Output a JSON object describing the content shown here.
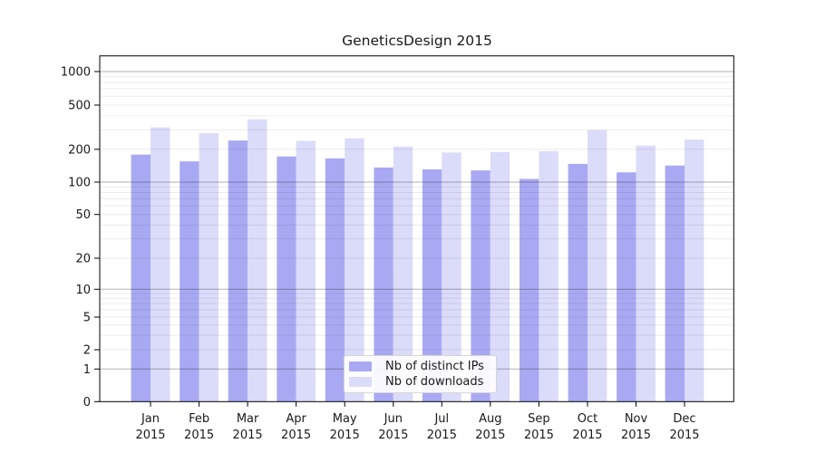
{
  "chart_data": {
    "type": "bar",
    "title": "GeneticsDesign 2015",
    "year": "2015",
    "categories": [
      "Jan",
      "Feb",
      "Mar",
      "Apr",
      "May",
      "Jun",
      "Jul",
      "Aug",
      "Sep",
      "Oct",
      "Nov",
      "Dec"
    ],
    "series": [
      {
        "name": "Nb of distinct IPs",
        "color": "#a9a9f3",
        "values": [
          179,
          155,
          240,
          172,
          165,
          136,
          131,
          128,
          107,
          147,
          123,
          142
        ]
      },
      {
        "name": "Nb of downloads",
        "color": "#dbdbfa",
        "values": [
          315,
          280,
          372,
          238,
          251,
          212,
          187,
          189,
          192,
          298,
          216,
          245
        ]
      }
    ],
    "y_axis": {
      "scale": "log (linear segment between 0 and 1)",
      "ticks": [
        0,
        1,
        2,
        5,
        10,
        20,
        50,
        100,
        200,
        500,
        1000
      ],
      "tick_labels": [
        "0",
        "1",
        "2",
        "5",
        "10",
        "20",
        "50",
        "100",
        "200",
        "500",
        "1000"
      ],
      "major_gridline_values": [
        1,
        10,
        100,
        1000
      ],
      "ylim": [
        0,
        1300
      ]
    },
    "x_axis": {
      "label_line_2": "2015"
    },
    "legend": {
      "position": "inside-bottom-center",
      "entries": [
        "Nb of distinct IPs",
        "Nb of downloads"
      ]
    },
    "grid": true,
    "colors": {
      "minor_gridline": "rgba(0,0,0,0.08)",
      "major_gridline": "rgba(0,0,0,0.30)",
      "spine": "#000000",
      "text": "#1a1a1a"
    }
  }
}
